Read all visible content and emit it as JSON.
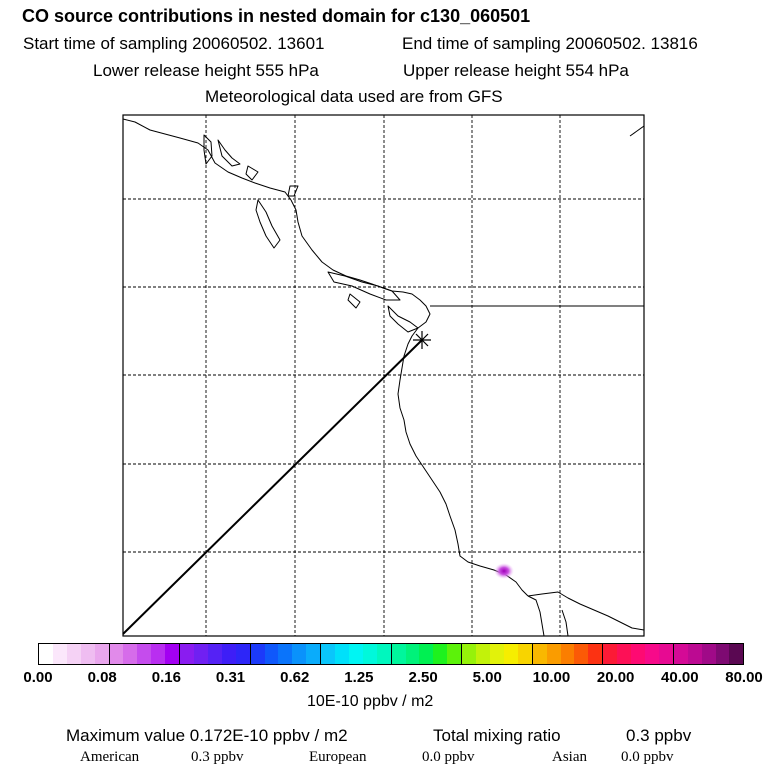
{
  "header": {
    "title": "CO  source contributions in nested domain for c130_060501",
    "start_time": "Start time of sampling 20060502. 13601",
    "end_time": "End time of sampling 20060502. 13816",
    "lower_height": "Lower release height  555 hPa",
    "upper_height": "Upper release height  554 hPa",
    "met_data": "Meteorological data used are from GFS"
  },
  "legend": {
    "ticks": [
      "0.00",
      "0.08",
      "0.16",
      "0.31",
      "0.62",
      "1.25",
      "2.50",
      "5.00",
      "10.00",
      "20.00",
      "40.00",
      "80.00"
    ],
    "units": "10E-10 ppbv / m2",
    "colors": [
      "#ffffff",
      "#fbe7fb",
      "#f5d2f5",
      "#efbdf1",
      "#e9a6ed",
      "#e18aea",
      "#d66cea",
      "#c54ced",
      "#b92ef0",
      "#a300f2",
      "#8a1cf0",
      "#7020f2",
      "#5522f5",
      "#3e1ef7",
      "#2d26f8",
      "#1c3afa",
      "#0f58fb",
      "#0a74fb",
      "#0a92fb",
      "#0aacfb",
      "#0ac6fb",
      "#00e0fa",
      "#00f5f3",
      "#00f8db",
      "#00f7be",
      "#00f69c",
      "#00f27a",
      "#00f052",
      "#1ef21e",
      "#5cf20a",
      "#96f20a",
      "#c2f20a",
      "#e2f20a",
      "#f6ee00",
      "#f8d400",
      "#f9b800",
      "#fa9c00",
      "#fb7e00",
      "#fb5a06",
      "#fc3212",
      "#fc1a36",
      "#fd1056",
      "#fe0a72",
      "#f70a8a",
      "#e70a92",
      "#d40a96",
      "#bc0a92",
      "#a00a88",
      "#7e0a72",
      "#5a0852"
    ]
  },
  "summary": {
    "max_value": "Maximum value  0.172E-10 ppbv / m2",
    "total_label": "Total mixing ratio",
    "total_value": "0.3 ppbv",
    "american_label": "American",
    "american_value": "0.3 ppbv",
    "european_label": "European",
    "european_value": "0.0 ppbv",
    "asian_label": "Asian",
    "asian_value": "0.0 ppbv"
  }
}
